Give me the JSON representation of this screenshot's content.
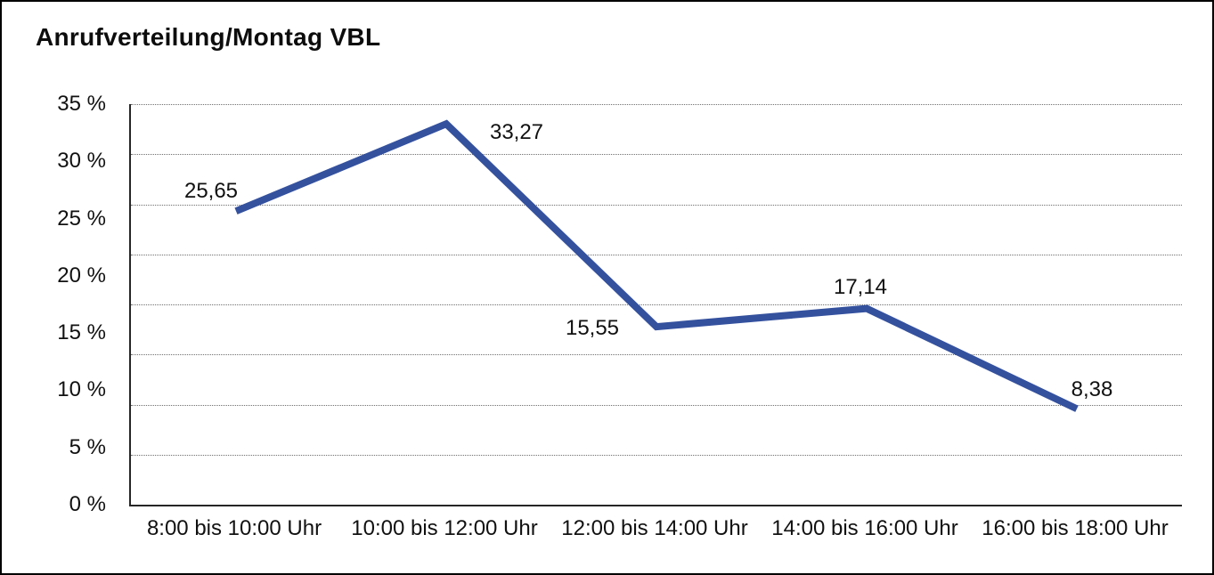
{
  "window": {
    "background": "#ffffff",
    "frame_border": "#000000"
  },
  "colors": {
    "line": "#34519E",
    "axis": "#262626",
    "grid": "#6f6f6f",
    "text": "#111111",
    "background": "#ffffff"
  },
  "chart_data": {
    "type": "line",
    "title": "Anrufverteilung/Montag VBL",
    "categories": [
      "8:00 bis 10:00 Uhr",
      "10:00 bis 12:00 Uhr",
      "12:00 bis 14:00 Uhr",
      "14:00 bis 16:00 Uhr",
      "16:00 bis 18:00 Uhr"
    ],
    "values": [
      25.65,
      33.27,
      15.55,
      17.14,
      8.38
    ],
    "point_labels": [
      "25,65",
      "33,27",
      "15,55",
      "17,14",
      "8,38"
    ],
    "xlabel": "",
    "ylabel": "",
    "y_tick_labels": [
      "35 %",
      "30 %",
      "25 %",
      "20 %",
      "15 %",
      "10 %",
      "5 %",
      "0 %"
    ],
    "y_tick_values": [
      35,
      30,
      25,
      20,
      15,
      10,
      5,
      0
    ],
    "ylim": [
      0,
      35
    ],
    "grid": "horizontal-dotted-8-divisions",
    "legend_position": "none",
    "series_name": "Anrufverteilung Montag VBL"
  }
}
